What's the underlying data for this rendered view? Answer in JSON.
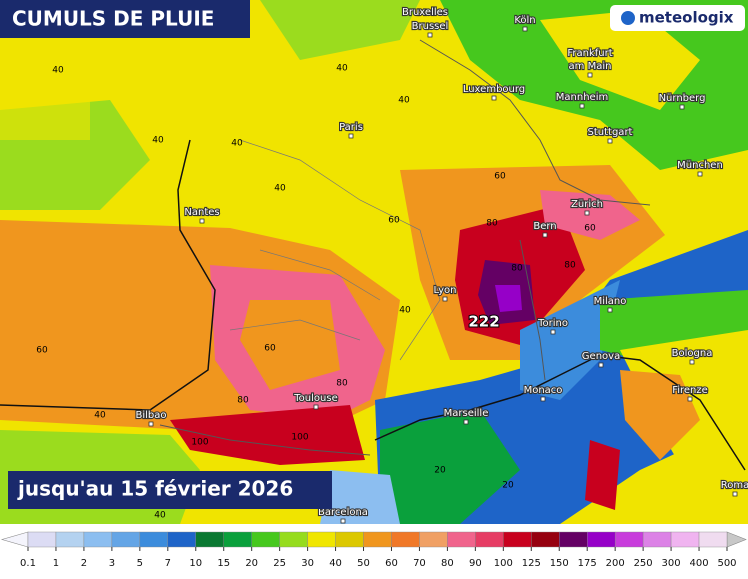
{
  "header": {
    "title": "CUMULS DE PLUIE",
    "subtitle": "jusqu'au 15 février 2026",
    "brand": "meteologix"
  },
  "cities": [
    "Bruxelles",
    "Brussel",
    "Köln",
    "Frankfurt",
    "am Main",
    "Luxembourg",
    "Mannheim",
    "Nürnberg",
    "Paris",
    "Stuttgart",
    "München",
    "Nantes",
    "Zürich",
    "Bern",
    "Lyon",
    "Milano",
    "Torino",
    "Genova",
    "Bologna",
    "Monaco",
    "Toulouse",
    "Firenze",
    "Bilbao",
    "Marseille",
    "Barcelona",
    "Roma"
  ],
  "contour_labels": [
    40,
    40,
    40,
    40,
    40,
    40,
    40,
    40,
    40,
    60,
    60,
    60,
    60,
    60,
    80,
    80,
    80,
    80,
    80,
    100,
    100,
    20,
    20
  ],
  "peak_label": 222,
  "legend": {
    "labels": [
      "0.1",
      "1",
      "2",
      "3",
      "5",
      "7",
      "10",
      "15",
      "20",
      "25",
      "30",
      "40",
      "50",
      "60",
      "70",
      "80",
      "90",
      "100",
      "125",
      "150",
      "175",
      "200",
      "250",
      "300",
      "400",
      "500"
    ],
    "colors": [
      "#f4f4fc",
      "#dcdcf4",
      "#b4d2f0",
      "#8cbef0",
      "#64a5e6",
      "#3c8cdc",
      "#1e64c8",
      "#0a7832",
      "#0aa03c",
      "#46c81e",
      "#96dc1e",
      "#f0e600",
      "#dcc800",
      "#f0961e",
      "#f07828",
      "#f0a064",
      "#f0648c",
      "#e63c64",
      "#c8001e",
      "#96000f",
      "#640064",
      "#9600c8",
      "#c83cdc",
      "#dc82e6",
      "#f0b4f0",
      "#f0dcf0",
      "#c8c8c8"
    ]
  }
}
